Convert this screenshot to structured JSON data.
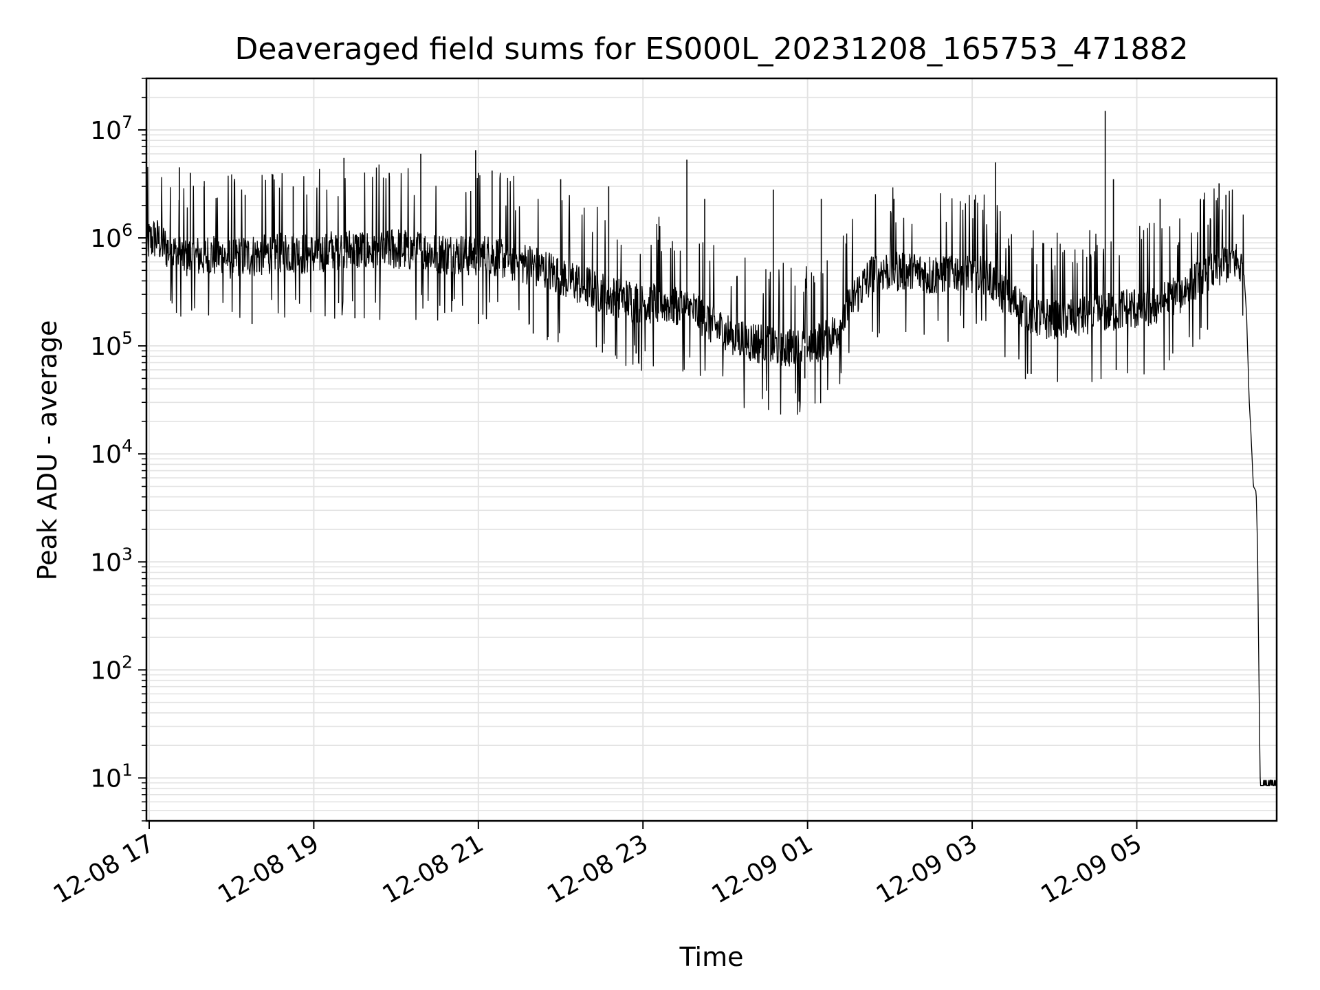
{
  "chart_data": {
    "type": "line",
    "title": "Deaveraged field sums for ES000L_20231208_165753_471882",
    "xlabel": "Time",
    "ylabel": "Peak ADU - average",
    "x_axis": "datetime",
    "xlim": [
      "2023-12-08T16:58:00",
      "2023-12-09T06:42:00"
    ],
    "y_scale": "log",
    "ylim": [
      4,
      30000000
    ],
    "grid": true,
    "grid_minor": true,
    "x_ticks": [
      {
        "value": "2023-12-08T17:00:00",
        "label": "12-08 17"
      },
      {
        "value": "2023-12-08T19:00:00",
        "label": "12-08 19"
      },
      {
        "value": "2023-12-08T21:00:00",
        "label": "12-08 21"
      },
      {
        "value": "2023-12-08T23:00:00",
        "label": "12-08 23"
      },
      {
        "value": "2023-12-09T01:00:00",
        "label": "12-09 01"
      },
      {
        "value": "2023-12-09T03:00:00",
        "label": "12-09 03"
      },
      {
        "value": "2023-12-09T05:00:00",
        "label": "12-09 05"
      }
    ],
    "y_ticks": [
      {
        "value": 10,
        "base": "10",
        "exp": "1"
      },
      {
        "value": 100,
        "base": "10",
        "exp": "2"
      },
      {
        "value": 1000,
        "base": "10",
        "exp": "3"
      },
      {
        "value": 10000,
        "base": "10",
        "exp": "4"
      },
      {
        "value": 100000,
        "base": "10",
        "exp": "5"
      },
      {
        "value": 1000000,
        "base": "10",
        "exp": "6"
      },
      {
        "value": 10000000,
        "base": "10",
        "exp": "7"
      }
    ],
    "series": [
      {
        "color": "#000000",
        "points": [
          [
            "2023-12-08T16:58:00",
            900000
          ],
          [
            "2023-12-08T17:05:00",
            1000000
          ],
          [
            "2023-12-08T17:13:00",
            800000
          ],
          [
            "2023-12-08T17:20:00",
            700000
          ],
          [
            "2023-12-08T17:30:00",
            650000
          ],
          [
            "2023-12-08T17:45:00",
            700000
          ],
          [
            "2023-12-08T18:00:00",
            650000
          ],
          [
            "2023-12-08T18:20:00",
            700000
          ],
          [
            "2023-12-08T18:40:00",
            750000
          ],
          [
            "2023-12-08T19:00:00",
            700000
          ],
          [
            "2023-12-08T19:20:00",
            800000
          ],
          [
            "2023-12-08T19:40:00",
            750000
          ],
          [
            "2023-12-08T20:00:00",
            800000
          ],
          [
            "2023-12-08T20:20:00",
            750000
          ],
          [
            "2023-12-08T20:40:00",
            700000
          ],
          [
            "2023-12-08T21:00:00",
            700000
          ],
          [
            "2023-12-08T21:20:00",
            650000
          ],
          [
            "2023-12-08T21:40:00",
            550000
          ],
          [
            "2023-12-08T22:00:00",
            450000
          ],
          [
            "2023-12-08T22:20:00",
            350000
          ],
          [
            "2023-12-08T22:40:00",
            280000
          ],
          [
            "2023-12-08T23:00:00",
            250000
          ],
          [
            "2023-12-08T23:20:00",
            250000
          ],
          [
            "2023-12-08T23:40:00",
            200000
          ],
          [
            "2023-12-09T00:00:00",
            130000
          ],
          [
            "2023-12-09T00:20:00",
            110000
          ],
          [
            "2023-12-09T00:40:00",
            100000
          ],
          [
            "2023-12-09T01:00:00",
            100000
          ],
          [
            "2023-12-09T01:20:00",
            130000
          ],
          [
            "2023-12-09T01:35:00",
            300000
          ],
          [
            "2023-12-09T01:50:00",
            500000
          ],
          [
            "2023-12-09T02:10:00",
            500000
          ],
          [
            "2023-12-09T02:30:00",
            450000
          ],
          [
            "2023-12-09T02:50:00",
            500000
          ],
          [
            "2023-12-09T03:10:00",
            450000
          ],
          [
            "2023-12-09T03:30:00",
            250000
          ],
          [
            "2023-12-09T03:50:00",
            180000
          ],
          [
            "2023-12-09T04:10:00",
            180000
          ],
          [
            "2023-12-09T04:30:00",
            200000
          ],
          [
            "2023-12-09T04:50:00",
            220000
          ],
          [
            "2023-12-09T05:10:00",
            230000
          ],
          [
            "2023-12-09T05:30:00",
            300000
          ],
          [
            "2023-12-09T05:50:00",
            450000
          ],
          [
            "2023-12-09T06:10:00",
            650000
          ],
          [
            "2023-12-09T06:18:00",
            500000
          ],
          [
            "2023-12-09T06:20:00",
            200000
          ],
          [
            "2023-12-09T06:22:00",
            30000
          ],
          [
            "2023-12-09T06:23:00",
            18000
          ],
          [
            "2023-12-09T06:25:00",
            5000
          ],
          [
            "2023-12-09T06:27:00",
            4500
          ],
          [
            "2023-12-09T06:28:00",
            1500
          ],
          [
            "2023-12-09T06:29:00",
            100
          ],
          [
            "2023-12-09T06:30:00",
            9
          ],
          [
            "2023-12-09T06:42:00",
            9
          ]
        ],
        "spikes": [
          [
            "2023-12-08T17:22:00",
            4500000
          ],
          [
            "2023-12-08T17:30:00",
            4000000
          ],
          [
            "2023-12-08T17:40:00",
            3000000
          ],
          [
            "2023-12-08T18:10:00",
            2500000
          ],
          [
            "2023-12-08T18:45:00",
            3000000
          ],
          [
            "2023-12-08T19:22:00",
            5500000
          ],
          [
            "2023-12-08T19:55:00",
            4000000
          ],
          [
            "2023-12-08T20:18:00",
            6000000
          ],
          [
            "2023-12-08T20:58:00",
            6500000
          ],
          [
            "2023-12-08T21:00:00",
            4000000
          ],
          [
            "2023-12-08T21:10:00",
            4200000
          ],
          [
            "2023-12-08T22:00:00",
            3500000
          ],
          [
            "2023-12-08T22:35:00",
            3000000
          ],
          [
            "2023-12-08T23:32:00",
            5300000
          ],
          [
            "2023-12-08T23:45:00",
            2300000
          ],
          [
            "2023-12-09T00:35:00",
            2800000
          ],
          [
            "2023-12-09T01:10:00",
            2300000
          ],
          [
            "2023-12-09T02:03:00",
            2300000
          ],
          [
            "2023-12-09T03:17:00",
            5000000
          ],
          [
            "2023-12-09T04:37:00",
            15000000
          ],
          [
            "2023-12-09T04:43:00",
            3500000
          ],
          [
            "2023-12-09T05:17:00",
            2300000
          ],
          [
            "2023-12-09T06:00:00",
            3200000
          ],
          [
            "2023-12-09T06:05:00",
            2500000
          ]
        ],
        "dips": [
          [
            "2023-12-08T18:15:00",
            160000
          ],
          [
            "2023-12-08T19:30:00",
            180000
          ],
          [
            "2023-12-08T21:00:00",
            160000
          ],
          [
            "2023-12-08T21:40:00",
            130000
          ],
          [
            "2023-12-08T22:55:00",
            85000
          ],
          [
            "2023-12-09T00:30:00",
            55000
          ],
          [
            "2023-12-09T00:58:00",
            50000
          ],
          [
            "2023-12-09T03:43:00",
            55000
          ],
          [
            "2023-12-09T04:45:00",
            60000
          ]
        ]
      }
    ]
  }
}
